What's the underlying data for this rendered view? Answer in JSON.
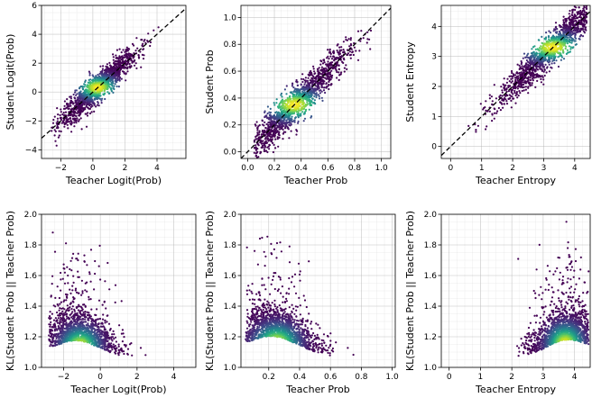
{
  "chart_data": [
    {
      "type": "scatter",
      "title": "",
      "xlabel": "Teacher Logit(Prob)",
      "ylabel": "Student Logit(Prob)",
      "xlim": [
        -3.2,
        5.8
      ],
      "ylim": [
        -4.6,
        6.0
      ],
      "xticks": [
        -2,
        0,
        2,
        4
      ],
      "yticks": [
        -4,
        -2,
        0,
        2,
        4,
        6
      ],
      "xtick_labels": [
        "−2",
        "0",
        "2",
        "4"
      ],
      "ytick_labels": [
        "−4",
        "−2",
        "0",
        "2",
        "4",
        "6"
      ],
      "reference_line": "y=x",
      "grid": true,
      "colormap": "viridis",
      "point_cloud": {
        "center": [
          0.3,
          0.4
        ],
        "x_spread": 1.2,
        "noise": 0.5,
        "trend": "linear",
        "slope": 1.0,
        "intercept": 0.0,
        "x_range": [
          -2.6,
          4.8
        ]
      }
    },
    {
      "type": "scatter",
      "title": "",
      "xlabel": "Teacher Prob",
      "ylabel": "Student Prob",
      "xlim": [
        -0.05,
        1.07
      ],
      "ylim": [
        -0.05,
        1.09
      ],
      "xticks": [
        0.0,
        0.2,
        0.4,
        0.6,
        0.8,
        1.0
      ],
      "yticks": [
        0.0,
        0.2,
        0.4,
        0.6,
        0.8,
        1.0
      ],
      "xtick_labels": [
        "0.0",
        "0.2",
        "0.4",
        "0.6",
        "0.8",
        "1.0"
      ],
      "ytick_labels": [
        "0.0",
        "0.2",
        "0.4",
        "0.6",
        "0.8",
        "1.0"
      ],
      "reference_line": "y=x",
      "grid": true,
      "colormap": "viridis",
      "point_cloud": {
        "center": [
          0.35,
          0.36
        ],
        "x_spread": 0.2,
        "noise": 0.07,
        "trend": "linear",
        "slope": 1.0,
        "intercept": 0.0,
        "x_range": [
          0.05,
          0.98
        ]
      }
    },
    {
      "type": "scatter",
      "title": "",
      "xlabel": "Teacher Entropy",
      "ylabel": "Student Entropy",
      "xlim": [
        -0.3,
        4.5
      ],
      "ylim": [
        -0.4,
        4.7
      ],
      "xticks": [
        0,
        1,
        2,
        3,
        4
      ],
      "yticks": [
        0,
        1,
        2,
        3,
        4
      ],
      "xtick_labels": [
        "0",
        "1",
        "2",
        "3",
        "4"
      ],
      "ytick_labels": [
        "0",
        "1",
        "2",
        "3",
        "4"
      ],
      "reference_line": "y=x",
      "grid": true,
      "colormap": "viridis",
      "point_cloud": {
        "center": [
          3.3,
          3.3
        ],
        "x_spread": 0.9,
        "noise": 0.28,
        "trend": "linear",
        "slope": 1.0,
        "intercept": 0.0,
        "x_range": [
          0.1,
          4.4
        ]
      }
    },
    {
      "type": "scatter",
      "title": "",
      "xlabel": "Teacher Logit(Prob)",
      "ylabel": "KL(Student Prob || Teacher Prob)",
      "xlim": [
        -3.2,
        5.2
      ],
      "ylim": [
        1.0,
        2.0
      ],
      "xticks": [
        -2,
        0,
        2,
        4
      ],
      "yticks": [
        1.0,
        1.2,
        1.4,
        1.6,
        1.8,
        2.0
      ],
      "xtick_labels": [
        "−2",
        "0",
        "2",
        "4"
      ],
      "ytick_labels": [
        "1.0",
        "1.2",
        "1.4",
        "1.6",
        "1.8",
        "2.0"
      ],
      "reference_line": "none",
      "grid": true,
      "colormap": "viridis",
      "point_cloud": {
        "center": [
          -1.1,
          1.13
        ],
        "x_spread": 1.0,
        "trend": "decay",
        "base": 1.02,
        "amp": 0.12,
        "x_range": [
          -2.8,
          4.8
        ]
      }
    },
    {
      "type": "scatter",
      "title": "",
      "xlabel": "Teacher Prob",
      "ylabel": "KL(Student Prob || Teacher Prob)",
      "xlim": [
        0.02,
        1.02
      ],
      "ylim": [
        1.0,
        2.0
      ],
      "xticks": [
        0.2,
        0.4,
        0.6,
        0.8,
        1.0
      ],
      "yticks": [
        1.0,
        1.2,
        1.4,
        1.6,
        1.8,
        2.0
      ],
      "xtick_labels": [
        "0.2",
        "0.4",
        "0.6",
        "0.8",
        "1.0"
      ],
      "ytick_labels": [
        "1.0",
        "1.2",
        "1.4",
        "1.6",
        "1.8",
        "2.0"
      ],
      "reference_line": "none",
      "grid": true,
      "colormap": "viridis",
      "point_cloud": {
        "center": [
          0.25,
          1.15
        ],
        "x_spread": 0.14,
        "trend": "decay",
        "base": 1.02,
        "amp": 0.14,
        "x_range": [
          0.05,
          0.98
        ]
      }
    },
    {
      "type": "scatter",
      "title": "",
      "xlabel": "Teacher Entropy",
      "ylabel": "KL(Student Prob || Teacher Prob)",
      "xlim": [
        -0.25,
        4.5
      ],
      "ylim": [
        1.0,
        2.0
      ],
      "xticks": [
        0,
        1,
        2,
        3,
        4
      ],
      "yticks": [
        1.0,
        1.2,
        1.4,
        1.6,
        1.8,
        2.0
      ],
      "xtick_labels": [
        "0",
        "1",
        "2",
        "3",
        "4"
      ],
      "ytick_labels": [
        "1.0",
        "1.2",
        "1.4",
        "1.6",
        "1.8",
        "2.0"
      ],
      "reference_line": "none",
      "grid": true,
      "colormap": "viridis",
      "point_cloud": {
        "center": [
          3.7,
          1.15
        ],
        "x_spread": 0.55,
        "trend": "growth",
        "base": 1.02,
        "amp": 0.12,
        "x_range": [
          0.1,
          4.45
        ]
      }
    }
  ]
}
